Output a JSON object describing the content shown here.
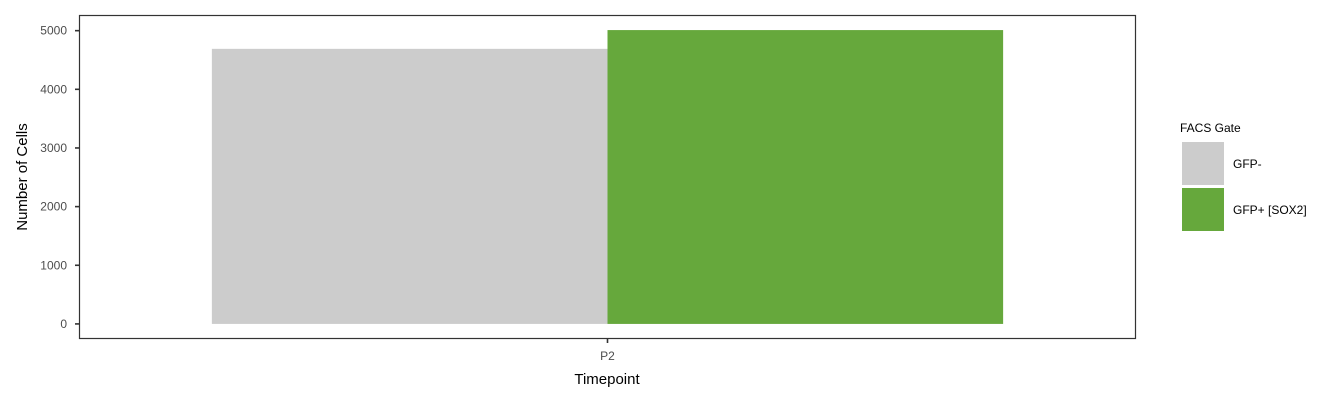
{
  "chart_data": {
    "type": "bar",
    "title": "",
    "xlabel": "Timepoint",
    "ylabel": "Number of Cells",
    "categories": [
      "P2"
    ],
    "series": [
      {
        "name": "GFP-",
        "values": [
          4690
        ],
        "color": "#cccccc"
      },
      {
        "name": "GFP+ [SOX2]",
        "values": [
          5010
        ],
        "color": "#66a83c"
      }
    ],
    "ylim": [
      -240,
      5250
    ],
    "yticks": [
      0,
      1000,
      2000,
      3000,
      4000,
      5000
    ],
    "grid": false,
    "legend": {
      "title": "FACS Gate",
      "position": "right"
    }
  }
}
